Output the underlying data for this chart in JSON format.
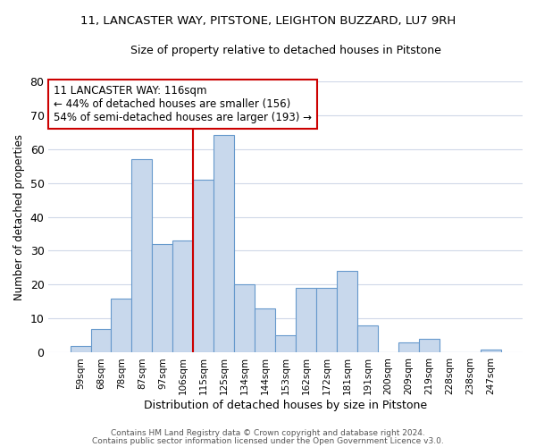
{
  "title_line1": "11, LANCASTER WAY, PITSTONE, LEIGHTON BUZZARD, LU7 9RH",
  "title_line2": "Size of property relative to detached houses in Pitstone",
  "xlabel": "Distribution of detached houses by size in Pitstone",
  "ylabel": "Number of detached properties",
  "bar_labels": [
    "59sqm",
    "68sqm",
    "78sqm",
    "87sqm",
    "97sqm",
    "106sqm",
    "115sqm",
    "125sqm",
    "134sqm",
    "144sqm",
    "153sqm",
    "162sqm",
    "172sqm",
    "181sqm",
    "191sqm",
    "200sqm",
    "209sqm",
    "219sqm",
    "228sqm",
    "238sqm",
    "247sqm"
  ],
  "bar_values": [
    2,
    7,
    16,
    57,
    32,
    33,
    51,
    64,
    20,
    13,
    5,
    19,
    19,
    24,
    8,
    0,
    3,
    4,
    0,
    0,
    1
  ],
  "bar_color": "#c8d8ec",
  "bar_edge_color": "#6699cc",
  "highlight_index": 6,
  "vline_color": "#cc0000",
  "annotation_text": "11 LANCASTER WAY: 116sqm\n← 44% of detached houses are smaller (156)\n54% of semi-detached houses are larger (193) →",
  "annotation_box_color": "#ffffff",
  "annotation_box_edge": "#cc0000",
  "ylim": [
    0,
    80
  ],
  "yticks": [
    0,
    10,
    20,
    30,
    40,
    50,
    60,
    70,
    80
  ],
  "footer_line1": "Contains HM Land Registry data © Crown copyright and database right 2024.",
  "footer_line2": "Contains public sector information licensed under the Open Government Licence v3.0.",
  "background_color": "#ffffff",
  "grid_color": "#d0d8e8"
}
